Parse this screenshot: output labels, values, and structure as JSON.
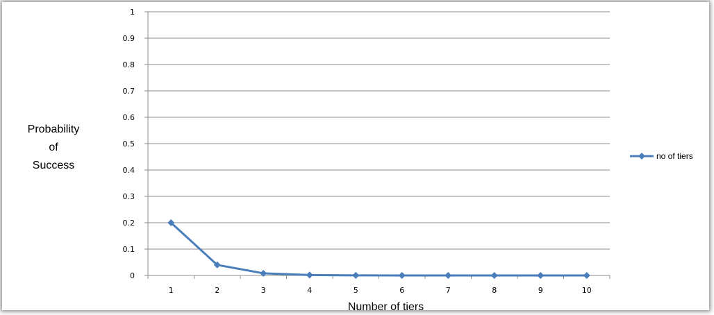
{
  "chart_data": {
    "type": "line",
    "title": "",
    "xlabel": "Number of tiers",
    "ylabel_lines": [
      "Probability",
      "of",
      "Success"
    ],
    "x": [
      1,
      2,
      3,
      4,
      5,
      6,
      7,
      8,
      9,
      10
    ],
    "x_tick_labels": [
      "1",
      "2",
      "3",
      "4",
      "5",
      "6",
      "7",
      "8",
      "9",
      "10"
    ],
    "y_tick_labels": [
      "0",
      "0.1",
      "0.2",
      "0.3",
      "0.4",
      "0.5",
      "0.6",
      "0.7",
      "0.8",
      "0.9",
      "1"
    ],
    "ylim": [
      0,
      1
    ],
    "grid": "horizontal",
    "legend": "right",
    "series": [
      {
        "name": "no of tiers",
        "color": "#4a7ebb",
        "marker": "diamond",
        "values": [
          0.2,
          0.04,
          0.008,
          0.0016,
          0.0003,
          0.0001,
          0.0,
          0.0,
          0.0,
          0.0
        ]
      }
    ]
  }
}
